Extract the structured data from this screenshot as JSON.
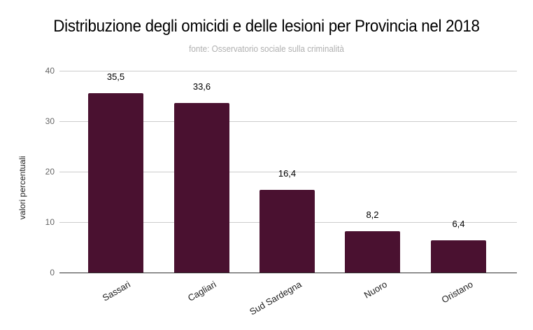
{
  "chart_data": {
    "type": "bar",
    "title": "Distribuzione degli omicidi e delle lesioni per Provincia nel 2018",
    "subtitle": "fonte: Osservatorio sociale sulla criminalità",
    "xlabel": "",
    "ylabel": "valori percentuali",
    "ylim": [
      0,
      40
    ],
    "yticks": [
      "0",
      "10",
      "20",
      "30",
      "40"
    ],
    "grid": true,
    "legend": null,
    "categories": [
      "Sassari",
      "Cagliari",
      "Sud Sardegna",
      "Nuoro",
      "Oristano"
    ],
    "values": [
      35.5,
      33.6,
      16.4,
      8.2,
      6.4
    ],
    "value_labels": [
      "35,5",
      "33,6",
      "16,4",
      "8,2",
      "6,4"
    ],
    "bar_color": "#4a1130"
  }
}
